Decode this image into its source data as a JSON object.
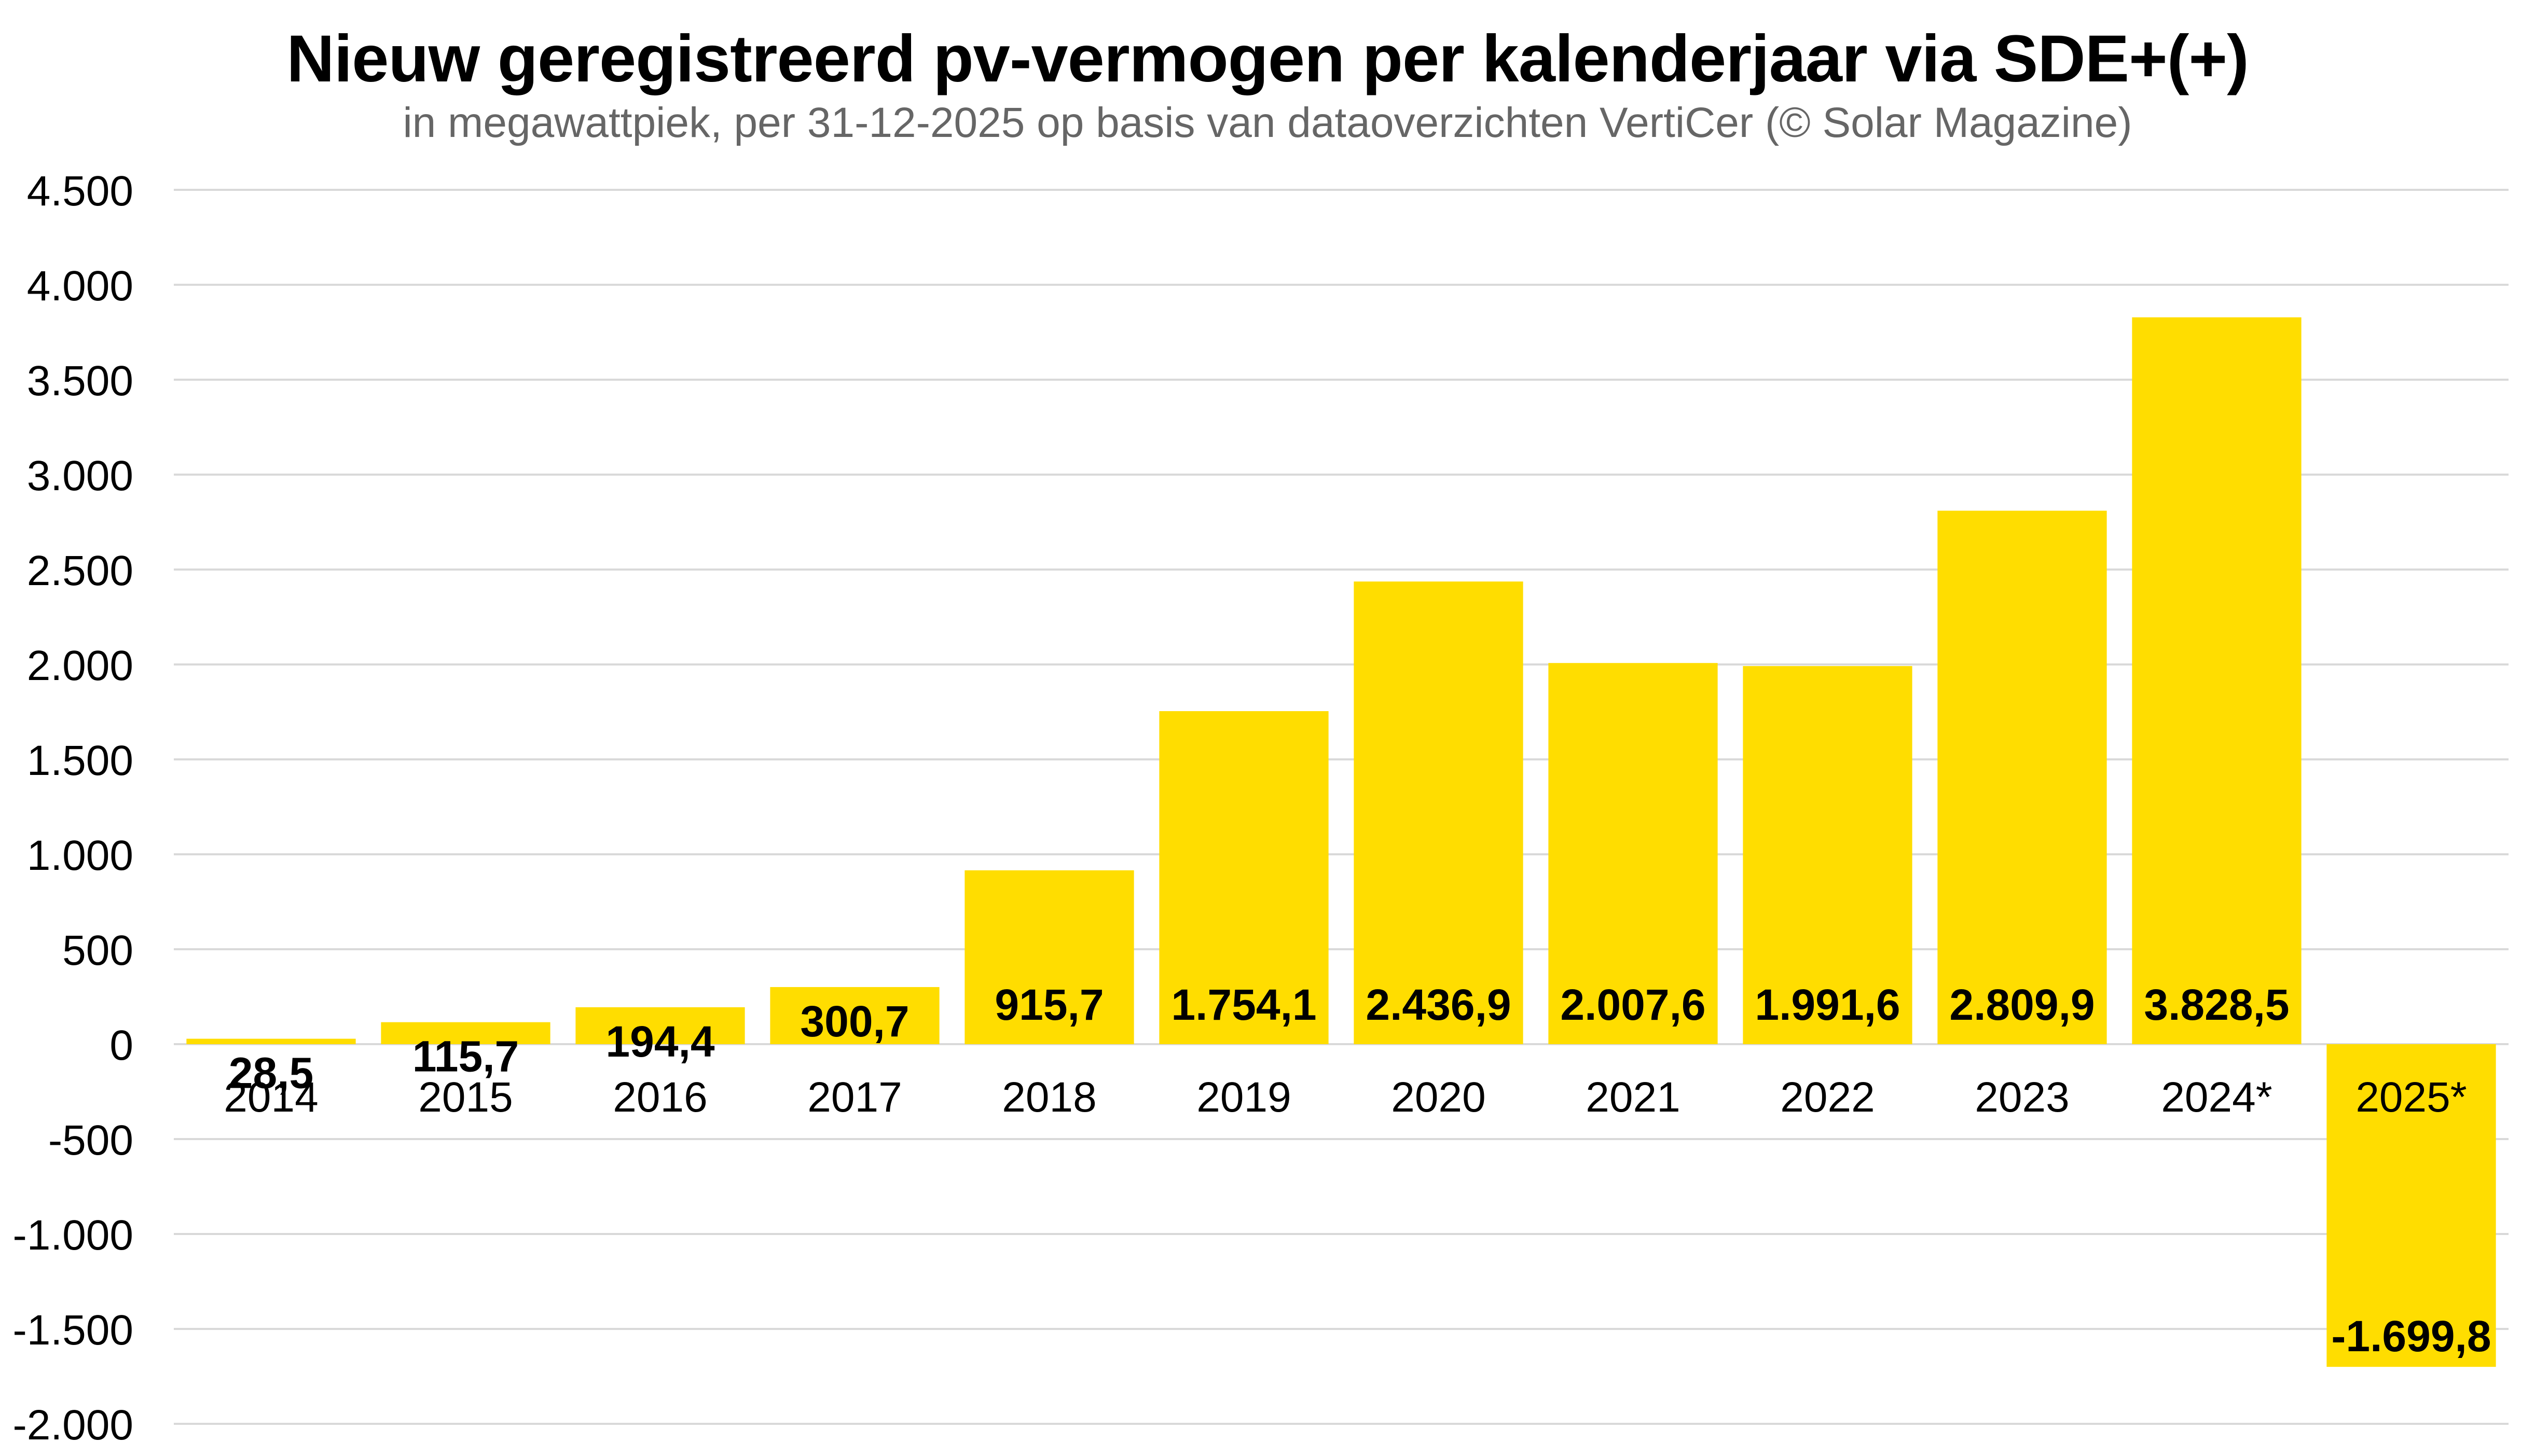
{
  "chart_data": {
    "type": "bar",
    "title": "Nieuw geregistreerd pv-vermogen per kalenderjaar via SDE+(+)",
    "subtitle": "in megawattpiek, per 31-12-2025 op basis van dataoverzichten VertiCer (© Solar Magazine)",
    "xlabel": "",
    "ylabel": "",
    "categories": [
      "2014",
      "2015",
      "2016",
      "2017",
      "2018",
      "2019",
      "2020",
      "2021",
      "2022",
      "2023",
      "2024*",
      "2025*"
    ],
    "values": [
      28.5,
      115.7,
      194.4,
      300.7,
      915.7,
      1754.1,
      2436.9,
      2007.6,
      1991.6,
      2809.9,
      3828.5,
      -1699.8
    ],
    "data_labels": [
      "28,5",
      "115,7",
      "194,4",
      "300,7",
      "915,7",
      "1.754,1",
      "2.436,9",
      "2.007,6",
      "1.991,6",
      "2.809,9",
      "3.828,5",
      "-1.699,8"
    ],
    "ylim": [
      -2000,
      4500
    ],
    "yticks": [
      4500,
      4000,
      3500,
      3000,
      2500,
      2000,
      1500,
      1000,
      500,
      0,
      -500,
      -1000,
      -1500,
      -2000
    ],
    "ytick_labels": [
      "4.500",
      "4.000",
      "3.500",
      "3.000",
      "2.500",
      "2.000",
      "1.500",
      "1.000",
      "500",
      "0",
      "-500",
      "-1.000",
      "-1.500",
      "-2.000"
    ],
    "grid": true,
    "legend": "none",
    "bar_color": "#FFDD00",
    "grid_color": "#D9D9D9"
  }
}
